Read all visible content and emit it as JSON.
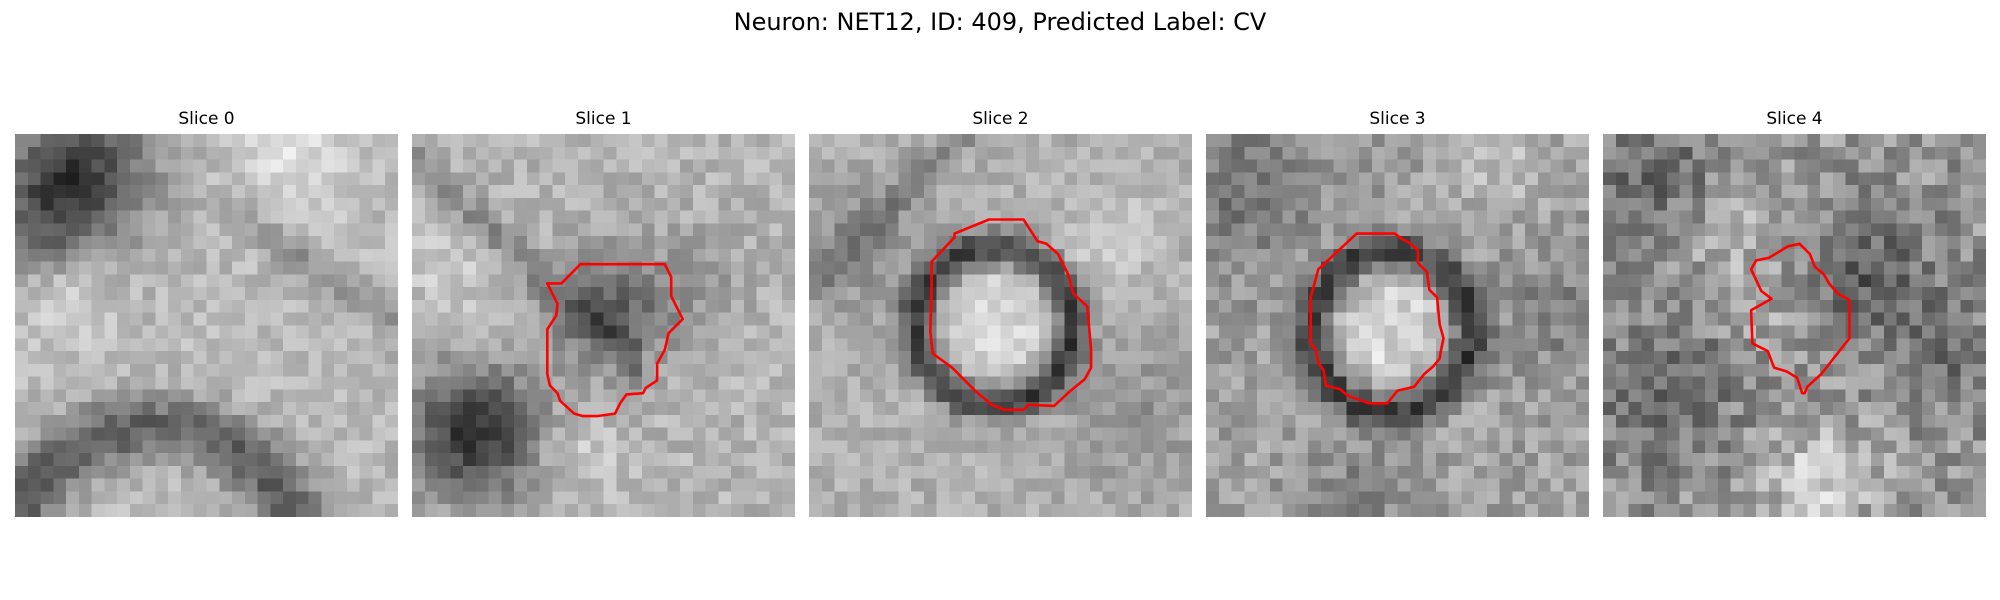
{
  "figure": {
    "title": "Neuron: NET12, ID: 409, Predicted Label: CV"
  },
  "colors": {
    "contour": "#ff0000",
    "background": "#ffffff"
  },
  "panels": [
    {
      "title": "Slice 0",
      "has_contour": false
    },
    {
      "title": "Slice 1",
      "has_contour": true
    },
    {
      "title": "Slice 2",
      "has_contour": true
    },
    {
      "title": "Slice 3",
      "has_contour": true
    },
    {
      "title": "Slice 4",
      "has_contour": true
    }
  ]
}
